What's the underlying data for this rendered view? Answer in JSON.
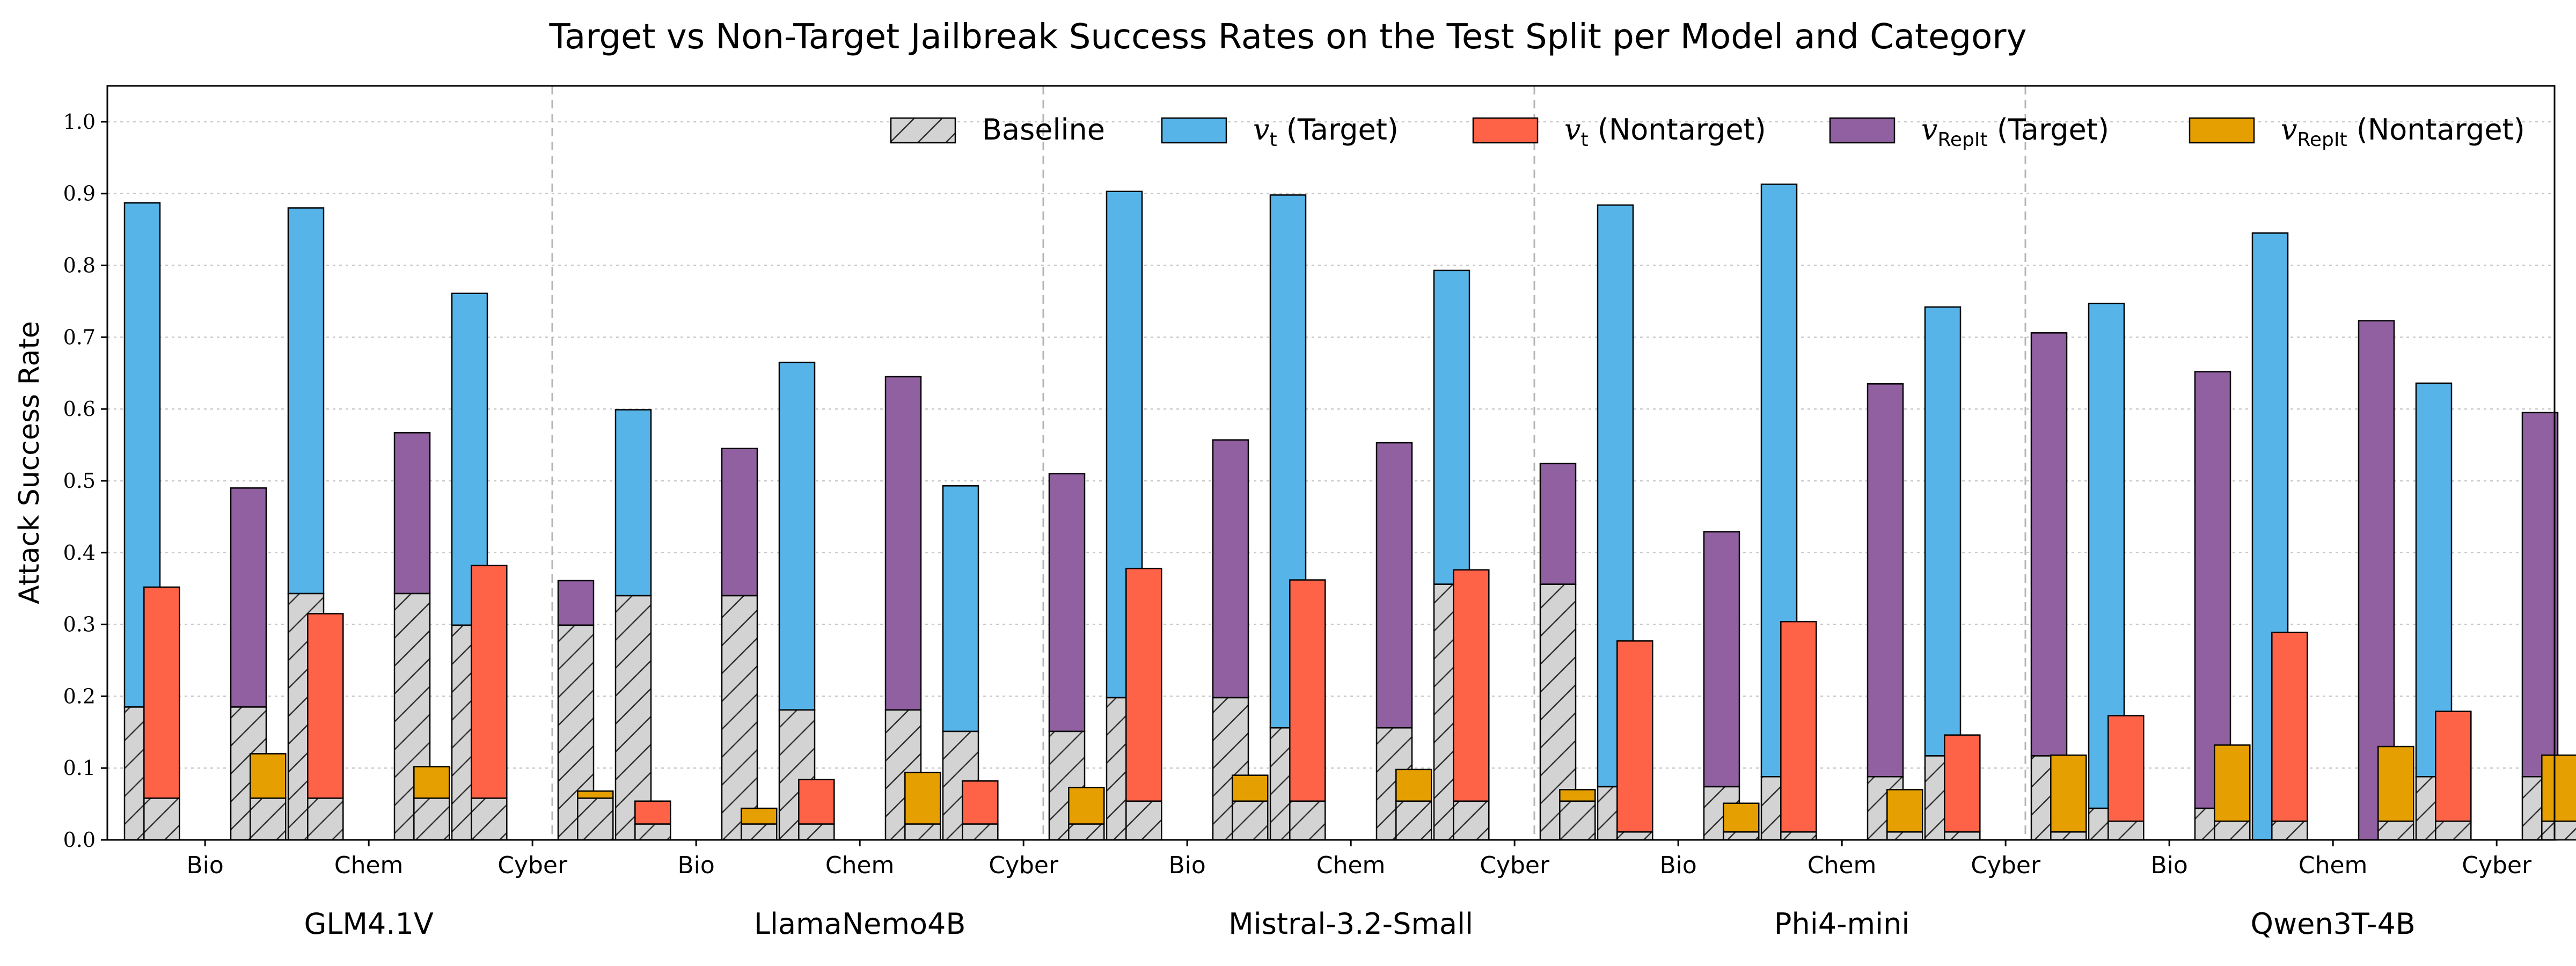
{
  "chart_data": {
    "type": "bar",
    "title": "Target vs Non-Target Jailbreak Success Rates on the Test Split per Model and Category",
    "ylabel": "Attack Success Rate",
    "xlabel": "",
    "ylim": [
      0.0,
      1.05
    ],
    "yticks": [
      "0.0",
      "0.1",
      "0.2",
      "0.3",
      "0.4",
      "0.5",
      "0.6",
      "0.7",
      "0.8",
      "0.9",
      "1.0"
    ],
    "grid": true,
    "legend_position": "top-right",
    "legend": [
      {
        "key": "baseline",
        "label": "Baseline",
        "math": ""
      },
      {
        "key": "vt_target",
        "label": "(Target)",
        "math": "v",
        "sub": "t"
      },
      {
        "key": "vt_nontarget",
        "label": "(Nontarget)",
        "math": "v",
        "sub": "t"
      },
      {
        "key": "vrep_target",
        "label": "(Target)",
        "math": "v",
        "sub": "RepIt"
      },
      {
        "key": "vrep_nontarget",
        "label": "(Nontarget)",
        "math": "v",
        "sub": "RepIt"
      }
    ],
    "colors": {
      "baseline": "#d3d3d3",
      "vt_target": "#56b4e9",
      "vt_nontarget": "#ff6347",
      "vrep_target": "#9060a0",
      "vrep_nontarget": "#e69f00"
    },
    "categories": [
      "Bio",
      "Chem",
      "Cyber"
    ],
    "models": [
      {
        "name": "GLM4.1V",
        "groups": [
          {
            "category": "Bio",
            "vt_baseline": 0.185,
            "vt_target": 0.887,
            "vt_nt_baseline": 0.058,
            "vt_nontarget": 0.352,
            "rep_baseline": 0.185,
            "rep_target": 0.49,
            "rep_nt_baseline": 0.058,
            "rep_nontarget": 0.12
          },
          {
            "category": "Chem",
            "vt_baseline": 0.343,
            "vt_target": 0.88,
            "vt_nt_baseline": 0.058,
            "vt_nontarget": 0.315,
            "rep_baseline": 0.343,
            "rep_target": 0.567,
            "rep_nt_baseline": 0.058,
            "rep_nontarget": 0.102
          },
          {
            "category": "Cyber",
            "vt_baseline": 0.299,
            "vt_target": 0.761,
            "vt_nt_baseline": 0.058,
            "vt_nontarget": 0.382,
            "rep_baseline": 0.299,
            "rep_target": 0.361,
            "rep_nt_baseline": 0.058,
            "rep_nontarget": 0.068
          }
        ]
      },
      {
        "name": "LlamaNemo4B",
        "groups": [
          {
            "category": "Bio",
            "vt_baseline": 0.34,
            "vt_target": 0.599,
            "vt_nt_baseline": 0.022,
            "vt_nontarget": 0.054,
            "rep_baseline": 0.34,
            "rep_target": 0.545,
            "rep_nt_baseline": 0.022,
            "rep_nontarget": 0.044
          },
          {
            "category": "Chem",
            "vt_baseline": 0.181,
            "vt_target": 0.665,
            "vt_nt_baseline": 0.022,
            "vt_nontarget": 0.084,
            "rep_baseline": 0.181,
            "rep_target": 0.645,
            "rep_nt_baseline": 0.022,
            "rep_nontarget": 0.094
          },
          {
            "category": "Cyber",
            "vt_baseline": 0.151,
            "vt_target": 0.493,
            "vt_nt_baseline": 0.022,
            "vt_nontarget": 0.082,
            "rep_baseline": 0.151,
            "rep_target": 0.51,
            "rep_nt_baseline": 0.022,
            "rep_nontarget": 0.073
          }
        ]
      },
      {
        "name": "Mistral-3.2-Small",
        "groups": [
          {
            "category": "Bio",
            "vt_baseline": 0.198,
            "vt_target": 0.903,
            "vt_nt_baseline": 0.054,
            "vt_nontarget": 0.378,
            "rep_baseline": 0.198,
            "rep_target": 0.557,
            "rep_nt_baseline": 0.054,
            "rep_nontarget": 0.09
          },
          {
            "category": "Chem",
            "vt_baseline": 0.156,
            "vt_target": 0.898,
            "vt_nt_baseline": 0.054,
            "vt_nontarget": 0.362,
            "rep_baseline": 0.156,
            "rep_target": 0.553,
            "rep_nt_baseline": 0.054,
            "rep_nontarget": 0.098
          },
          {
            "category": "Cyber",
            "vt_baseline": 0.356,
            "vt_target": 0.793,
            "vt_nt_baseline": 0.054,
            "vt_nontarget": 0.376,
            "rep_baseline": 0.356,
            "rep_target": 0.524,
            "rep_nt_baseline": 0.054,
            "rep_nontarget": 0.07
          }
        ]
      },
      {
        "name": "Phi4-mini",
        "groups": [
          {
            "category": "Bio",
            "vt_baseline": 0.074,
            "vt_target": 0.884,
            "vt_nt_baseline": 0.011,
            "vt_nontarget": 0.277,
            "rep_baseline": 0.074,
            "rep_target": 0.429,
            "rep_nt_baseline": 0.011,
            "rep_nontarget": 0.051
          },
          {
            "category": "Chem",
            "vt_baseline": 0.088,
            "vt_target": 0.913,
            "vt_nt_baseline": 0.011,
            "vt_nontarget": 0.304,
            "rep_baseline": 0.088,
            "rep_target": 0.635,
            "rep_nt_baseline": 0.011,
            "rep_nontarget": 0.07
          },
          {
            "category": "Cyber",
            "vt_baseline": 0.117,
            "vt_target": 0.742,
            "vt_nt_baseline": 0.011,
            "vt_nontarget": 0.146,
            "rep_baseline": 0.117,
            "rep_target": 0.706,
            "rep_nt_baseline": 0.011,
            "rep_nontarget": 0.118
          }
        ]
      },
      {
        "name": "Qwen3T-4B",
        "groups": [
          {
            "category": "Bio",
            "vt_baseline": 0.044,
            "vt_target": 0.747,
            "vt_nt_baseline": 0.026,
            "vt_nontarget": 0.173,
            "rep_baseline": 0.044,
            "rep_target": 0.652,
            "rep_nt_baseline": 0.026,
            "rep_nontarget": 0.132
          },
          {
            "category": "Chem",
            "vt_baseline": 0.0,
            "vt_target": 0.845,
            "vt_nt_baseline": 0.026,
            "vt_nontarget": 0.289,
            "rep_baseline": 0.0,
            "rep_target": 0.723,
            "rep_nt_baseline": 0.026,
            "rep_nontarget": 0.13
          },
          {
            "category": "Cyber",
            "vt_baseline": 0.088,
            "vt_target": 0.636,
            "vt_nt_baseline": 0.026,
            "vt_nontarget": 0.179,
            "rep_baseline": 0.088,
            "rep_target": 0.595,
            "rep_nt_baseline": 0.026,
            "rep_nontarget": 0.118
          }
        ]
      }
    ]
  }
}
